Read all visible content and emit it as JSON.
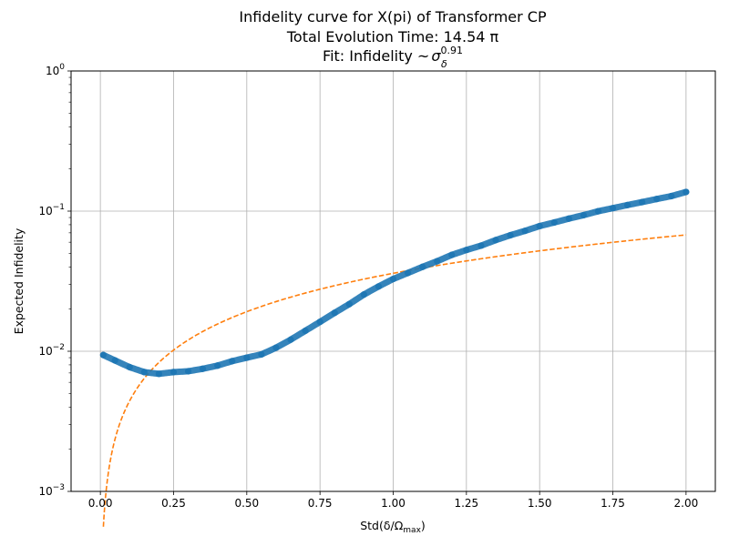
{
  "chart_data": {
    "type": "scatter",
    "title_lines": [
      "Infidelity curve for X(pi) of Transformer CP",
      "Total Evolution Time: 14.54 π"
    ],
    "fit_label": {
      "prefix": "Fit: Infidelity ",
      "sim": "~",
      "sigma": "σ",
      "subscript": "δ",
      "exponent": "0.91"
    },
    "xlabel": {
      "main": "Std(δ/Ω",
      "sub": "max",
      "close": ")"
    },
    "ylabel": "Expected Infidelity",
    "xlim": [
      -0.1,
      2.1
    ],
    "ylim": [
      0.001,
      1
    ],
    "yscale": "log",
    "grid": true,
    "xticks": [
      "0.00",
      "0.25",
      "0.50",
      "0.75",
      "1.00",
      "1.25",
      "1.50",
      "1.75",
      "2.00"
    ],
    "xtick_values": [
      0,
      0.25,
      0.5,
      0.75,
      1.0,
      1.25,
      1.5,
      1.75,
      2.0
    ],
    "yticks": [
      {
        "value": 0.001,
        "base": "10",
        "exp": "−3"
      },
      {
        "value": 0.01,
        "base": "10",
        "exp": "−2"
      },
      {
        "value": 0.1,
        "base": "10",
        "exp": "−1"
      },
      {
        "value": 1,
        "base": "10",
        "exp": "0"
      }
    ],
    "series": [
      {
        "kind": "scatter",
        "color": "#1f77b4",
        "x": [
          0.01,
          0.05,
          0.1,
          0.15,
          0.2,
          0.25,
          0.3,
          0.35,
          0.4,
          0.45,
          0.5,
          0.55,
          0.6,
          0.65,
          0.7,
          0.75,
          0.8,
          0.85,
          0.9,
          0.95,
          1.0,
          1.05,
          1.1,
          1.15,
          1.2,
          1.25,
          1.3,
          1.35,
          1.4,
          1.45,
          1.5,
          1.55,
          1.6,
          1.65,
          1.7,
          1.75,
          1.8,
          1.85,
          1.9,
          1.95,
          2.0
        ],
        "y": [
          0.0094,
          0.0086,
          0.0077,
          0.0071,
          0.0069,
          0.0071,
          0.0072,
          0.0075,
          0.0079,
          0.0085,
          0.009,
          0.0095,
          0.0106,
          0.0121,
          0.014,
          0.0162,
          0.0188,
          0.0217,
          0.0254,
          0.029,
          0.0328,
          0.0362,
          0.04,
          0.0439,
          0.0487,
          0.0528,
          0.0567,
          0.0621,
          0.0673,
          0.0723,
          0.0782,
          0.083,
          0.0884,
          0.0936,
          0.0998,
          0.105,
          0.1105,
          0.116,
          0.122,
          0.128,
          0.137
        ]
      },
      {
        "kind": "fit",
        "color": "#ff7f0e",
        "dashed": true,
        "coefficient": 0.036,
        "exponent": 0.91,
        "x_range": [
          0.0103,
          2.0
        ]
      }
    ]
  }
}
